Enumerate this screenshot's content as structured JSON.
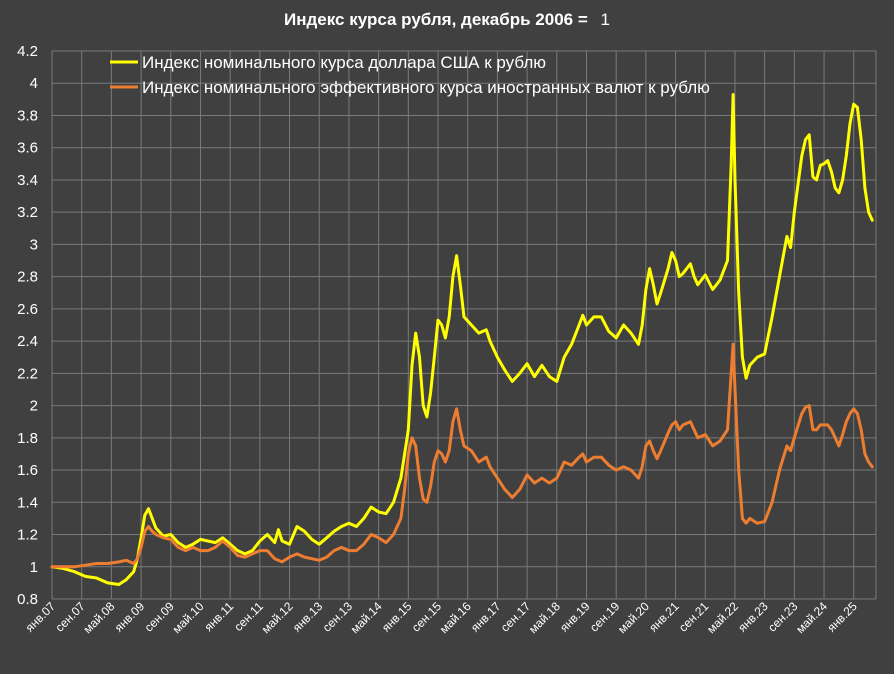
{
  "chart_data": {
    "type": "line",
    "title": "Индекс курса рубля, декабрь 2006 =",
    "title_value": "1",
    "ylim": [
      0.8,
      4.2
    ],
    "yticks": [
      0.8,
      1,
      1.2,
      1.4,
      1.6,
      1.8,
      2,
      2.2,
      2.4,
      2.6,
      2.8,
      3,
      3.2,
      3.4,
      3.6,
      3.8,
      4,
      4.2
    ],
    "grid": true,
    "legend": "top-left",
    "x_tick_labels": [
      "янв.07",
      "сен.07",
      "май.08",
      "янв.09",
      "сен.09",
      "май.10",
      "янв.11",
      "сен.11",
      "май.12",
      "янв.13",
      "сен.13",
      "май.14",
      "янв.15",
      "сен.15",
      "май.16",
      "янв.17",
      "сен.17",
      "май.18",
      "янв.19",
      "сен.19",
      "май.20",
      "янв.21",
      "сен.21",
      "май.22",
      "янв.23",
      "сен.23",
      "май.24",
      "янв.25"
    ],
    "x_tick_months": [
      0,
      8,
      16,
      24,
      32,
      40,
      48,
      56,
      64,
      72,
      80,
      88,
      96,
      104,
      112,
      120,
      128,
      136,
      144,
      152,
      160,
      168,
      176,
      184,
      192,
      200,
      208,
      216
    ],
    "x_range_months": [
      0,
      222
    ],
    "series": [
      {
        "name": "Индекс номинального курса доллара США к рублю",
        "color": "#ffff00",
        "points": [
          [
            0,
            1.0
          ],
          [
            3,
            0.99
          ],
          [
            6,
            0.97
          ],
          [
            9,
            0.94
          ],
          [
            12,
            0.93
          ],
          [
            15,
            0.9
          ],
          [
            18,
            0.89
          ],
          [
            20,
            0.92
          ],
          [
            22,
            0.97
          ],
          [
            23,
            1.05
          ],
          [
            24,
            1.18
          ],
          [
            25,
            1.32
          ],
          [
            26,
            1.36
          ],
          [
            27,
            1.3
          ],
          [
            28,
            1.24
          ],
          [
            30,
            1.19
          ],
          [
            32,
            1.2
          ],
          [
            34,
            1.15
          ],
          [
            36,
            1.12
          ],
          [
            38,
            1.14
          ],
          [
            40,
            1.17
          ],
          [
            42,
            1.16
          ],
          [
            44,
            1.15
          ],
          [
            46,
            1.18
          ],
          [
            48,
            1.14
          ],
          [
            50,
            1.1
          ],
          [
            52,
            1.08
          ],
          [
            54,
            1.1
          ],
          [
            56,
            1.16
          ],
          [
            58,
            1.2
          ],
          [
            60,
            1.15
          ],
          [
            61,
            1.23
          ],
          [
            62,
            1.16
          ],
          [
            64,
            1.14
          ],
          [
            66,
            1.25
          ],
          [
            68,
            1.22
          ],
          [
            70,
            1.17
          ],
          [
            72,
            1.14
          ],
          [
            74,
            1.18
          ],
          [
            76,
            1.22
          ],
          [
            78,
            1.25
          ],
          [
            80,
            1.27
          ],
          [
            82,
            1.25
          ],
          [
            84,
            1.3
          ],
          [
            86,
            1.37
          ],
          [
            88,
            1.34
          ],
          [
            90,
            1.33
          ],
          [
            92,
            1.4
          ],
          [
            94,
            1.55
          ],
          [
            96,
            1.85
          ],
          [
            97,
            2.25
          ],
          [
            98,
            2.45
          ],
          [
            99,
            2.3
          ],
          [
            100,
            2.0
          ],
          [
            101,
            1.93
          ],
          [
            102,
            2.08
          ],
          [
            103,
            2.3
          ],
          [
            104,
            2.53
          ],
          [
            105,
            2.5
          ],
          [
            106,
            2.42
          ],
          [
            107,
            2.55
          ],
          [
            108,
            2.8
          ],
          [
            109,
            2.93
          ],
          [
            110,
            2.75
          ],
          [
            111,
            2.55
          ],
          [
            113,
            2.5
          ],
          [
            115,
            2.45
          ],
          [
            117,
            2.47
          ],
          [
            118,
            2.4
          ],
          [
            120,
            2.3
          ],
          [
            122,
            2.22
          ],
          [
            124,
            2.15
          ],
          [
            126,
            2.2
          ],
          [
            128,
            2.26
          ],
          [
            130,
            2.18
          ],
          [
            132,
            2.25
          ],
          [
            134,
            2.18
          ],
          [
            136,
            2.15
          ],
          [
            138,
            2.3
          ],
          [
            140,
            2.38
          ],
          [
            142,
            2.5
          ],
          [
            143,
            2.56
          ],
          [
            144,
            2.5
          ],
          [
            146,
            2.55
          ],
          [
            148,
            2.55
          ],
          [
            150,
            2.46
          ],
          [
            152,
            2.42
          ],
          [
            154,
            2.5
          ],
          [
            156,
            2.45
          ],
          [
            158,
            2.38
          ],
          [
            159,
            2.5
          ],
          [
            160,
            2.72
          ],
          [
            161,
            2.85
          ],
          [
            162,
            2.75
          ],
          [
            163,
            2.63
          ],
          [
            164,
            2.7
          ],
          [
            166,
            2.85
          ],
          [
            167,
            2.95
          ],
          [
            168,
            2.9
          ],
          [
            169,
            2.8
          ],
          [
            170,
            2.82
          ],
          [
            172,
            2.88
          ],
          [
            173,
            2.8
          ],
          [
            174,
            2.75
          ],
          [
            176,
            2.81
          ],
          [
            178,
            2.72
          ],
          [
            180,
            2.78
          ],
          [
            182,
            2.9
          ],
          [
            183,
            3.5
          ],
          [
            183.5,
            3.93
          ],
          [
            184,
            3.4
          ],
          [
            185,
            2.7
          ],
          [
            186,
            2.3
          ],
          [
            187,
            2.17
          ],
          [
            188,
            2.25
          ],
          [
            190,
            2.3
          ],
          [
            192,
            2.32
          ],
          [
            194,
            2.55
          ],
          [
            196,
            2.8
          ],
          [
            198,
            3.05
          ],
          [
            199,
            2.98
          ],
          [
            200,
            3.2
          ],
          [
            202,
            3.55
          ],
          [
            203,
            3.65
          ],
          [
            204,
            3.68
          ],
          [
            205,
            3.42
          ],
          [
            206,
            3.4
          ],
          [
            207,
            3.49
          ],
          [
            208,
            3.5
          ],
          [
            209,
            3.52
          ],
          [
            210,
            3.45
          ],
          [
            211,
            3.35
          ],
          [
            212,
            3.32
          ],
          [
            213,
            3.4
          ],
          [
            214,
            3.55
          ],
          [
            215,
            3.75
          ],
          [
            216,
            3.87
          ],
          [
            217,
            3.85
          ],
          [
            218,
            3.65
          ],
          [
            219,
            3.35
          ],
          [
            220,
            3.2
          ],
          [
            221,
            3.15
          ]
        ]
      },
      {
        "name": "Индекс номинального эффективного курса иностранных валют к рублю",
        "color": "#ed7d31",
        "points": [
          [
            0,
            1.0
          ],
          [
            3,
            1.0
          ],
          [
            6,
            1.0
          ],
          [
            9,
            1.01
          ],
          [
            12,
            1.02
          ],
          [
            15,
            1.02
          ],
          [
            18,
            1.03
          ],
          [
            20,
            1.04
          ],
          [
            22,
            1.02
          ],
          [
            23,
            1.05
          ],
          [
            24,
            1.12
          ],
          [
            25,
            1.22
          ],
          [
            26,
            1.25
          ],
          [
            27,
            1.22
          ],
          [
            28,
            1.2
          ],
          [
            30,
            1.18
          ],
          [
            32,
            1.17
          ],
          [
            34,
            1.12
          ],
          [
            36,
            1.1
          ],
          [
            38,
            1.12
          ],
          [
            40,
            1.1
          ],
          [
            42,
            1.1
          ],
          [
            44,
            1.12
          ],
          [
            46,
            1.16
          ],
          [
            48,
            1.12
          ],
          [
            50,
            1.07
          ],
          [
            52,
            1.06
          ],
          [
            54,
            1.08
          ],
          [
            56,
            1.1
          ],
          [
            58,
            1.1
          ],
          [
            60,
            1.05
          ],
          [
            62,
            1.03
          ],
          [
            64,
            1.06
          ],
          [
            66,
            1.08
          ],
          [
            68,
            1.06
          ],
          [
            70,
            1.05
          ],
          [
            72,
            1.04
          ],
          [
            74,
            1.06
          ],
          [
            76,
            1.1
          ],
          [
            78,
            1.12
          ],
          [
            80,
            1.1
          ],
          [
            82,
            1.1
          ],
          [
            84,
            1.14
          ],
          [
            86,
            1.2
          ],
          [
            88,
            1.18
          ],
          [
            90,
            1.15
          ],
          [
            92,
            1.2
          ],
          [
            94,
            1.3
          ],
          [
            95,
            1.48
          ],
          [
            96,
            1.7
          ],
          [
            97,
            1.8
          ],
          [
            98,
            1.75
          ],
          [
            99,
            1.55
          ],
          [
            100,
            1.42
          ],
          [
            101,
            1.4
          ],
          [
            102,
            1.5
          ],
          [
            103,
            1.65
          ],
          [
            104,
            1.72
          ],
          [
            105,
            1.7
          ],
          [
            106,
            1.65
          ],
          [
            107,
            1.72
          ],
          [
            108,
            1.9
          ],
          [
            109,
            1.98
          ],
          [
            110,
            1.85
          ],
          [
            111,
            1.75
          ],
          [
            113,
            1.72
          ],
          [
            115,
            1.65
          ],
          [
            117,
            1.68
          ],
          [
            118,
            1.62
          ],
          [
            120,
            1.55
          ],
          [
            122,
            1.48
          ],
          [
            124,
            1.43
          ],
          [
            126,
            1.48
          ],
          [
            128,
            1.57
          ],
          [
            130,
            1.52
          ],
          [
            132,
            1.55
          ],
          [
            134,
            1.52
          ],
          [
            136,
            1.55
          ],
          [
            138,
            1.65
          ],
          [
            140,
            1.63
          ],
          [
            142,
            1.68
          ],
          [
            143,
            1.7
          ],
          [
            144,
            1.65
          ],
          [
            146,
            1.68
          ],
          [
            148,
            1.68
          ],
          [
            150,
            1.63
          ],
          [
            152,
            1.6
          ],
          [
            154,
            1.62
          ],
          [
            156,
            1.6
          ],
          [
            158,
            1.55
          ],
          [
            159,
            1.62
          ],
          [
            160,
            1.75
          ],
          [
            161,
            1.78
          ],
          [
            162,
            1.72
          ],
          [
            163,
            1.67
          ],
          [
            164,
            1.72
          ],
          [
            166,
            1.83
          ],
          [
            167,
            1.88
          ],
          [
            168,
            1.9
          ],
          [
            169,
            1.85
          ],
          [
            170,
            1.88
          ],
          [
            172,
            1.9
          ],
          [
            173,
            1.85
          ],
          [
            174,
            1.8
          ],
          [
            176,
            1.82
          ],
          [
            178,
            1.75
          ],
          [
            180,
            1.78
          ],
          [
            182,
            1.85
          ],
          [
            183,
            2.2
          ],
          [
            183.5,
            2.38
          ],
          [
            184,
            2.1
          ],
          [
            185,
            1.6
          ],
          [
            186,
            1.3
          ],
          [
            187,
            1.27
          ],
          [
            188,
            1.3
          ],
          [
            190,
            1.27
          ],
          [
            192,
            1.28
          ],
          [
            194,
            1.4
          ],
          [
            196,
            1.6
          ],
          [
            198,
            1.75
          ],
          [
            199,
            1.72
          ],
          [
            200,
            1.8
          ],
          [
            202,
            1.95
          ],
          [
            203,
            1.99
          ],
          [
            204,
            2.0
          ],
          [
            205,
            1.85
          ],
          [
            206,
            1.85
          ],
          [
            207,
            1.88
          ],
          [
            208,
            1.88
          ],
          [
            209,
            1.88
          ],
          [
            210,
            1.85
          ],
          [
            211,
            1.8
          ],
          [
            212,
            1.75
          ],
          [
            213,
            1.82
          ],
          [
            214,
            1.9
          ],
          [
            215,
            1.95
          ],
          [
            216,
            1.98
          ],
          [
            217,
            1.95
          ],
          [
            218,
            1.85
          ],
          [
            219,
            1.7
          ],
          [
            220,
            1.65
          ],
          [
            221,
            1.62
          ]
        ]
      }
    ]
  }
}
